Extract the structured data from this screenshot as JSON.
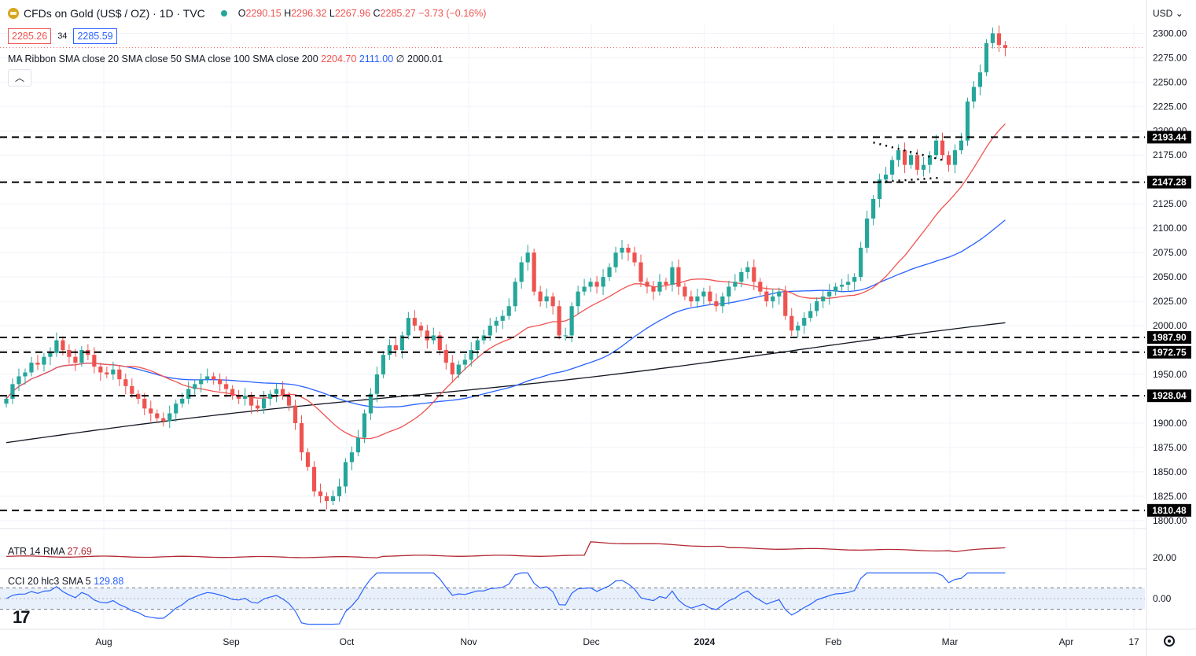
{
  "header": {
    "title": "CFDs on Gold (US$ / OZ) · 1D · TVC",
    "open_label": "O",
    "open": "2290.15",
    "high_label": "H",
    "high": "2296.32",
    "low_label": "L",
    "low": "2267.96",
    "close_label": "C",
    "close": "2285.27",
    "change": "−3.73 (−0.16%)",
    "sell_price": "2285.26",
    "spread": "34",
    "buy_price": "2285.59",
    "currency": "USD"
  },
  "ma_ribbon": {
    "label": "MA Ribbon SMA close 20 SMA close 50 SMA close 100 SMA close 200",
    "v20": "2204.70",
    "v50": "2111.00",
    "v100": "∅",
    "v200": "2000.01"
  },
  "atr": {
    "label": "ATR 14 RMA",
    "value": "27.69"
  },
  "cci": {
    "label": "CCI 20 hlc3 SMA 5",
    "value": "129.88"
  },
  "colors": {
    "up": "#26a69a",
    "down": "#ef5350",
    "sma20": "#ef5350",
    "sma50": "#2962ff",
    "sma200": "#131722",
    "atr": "#b22833",
    "cci": "#2962ff"
  },
  "chart_data": {
    "type": "candlestick",
    "yticks": [
      1800,
      1825,
      1850,
      1875,
      1900,
      1925,
      1950,
      1975,
      2000,
      2025,
      2050,
      2075,
      2100,
      2125,
      2150,
      2175,
      2200,
      2225,
      2250,
      2275,
      2300
    ],
    "ylim": [
      1795,
      2310
    ],
    "x_tick_labels": [
      "Aug",
      "Sep",
      "Oct",
      "Nov",
      "Dec",
      "2024",
      "Feb",
      "Mar",
      "Apr",
      "17"
    ],
    "levels": [
      2193.44,
      2147.28,
      1987.9,
      1972.75,
      1928.04,
      1810.48
    ],
    "level_labels": [
      "2193.44",
      "2147.28",
      "1987.90",
      "1972.75",
      "1928.04",
      "1810.48"
    ],
    "last_price": 2285.27,
    "closes": [
      1925,
      1940,
      1948,
      1952,
      1962,
      1960,
      1968,
      1972,
      1985,
      1975,
      1968,
      1962,
      1975,
      1970,
      1958,
      1952,
      1950,
      1955,
      1945,
      1938,
      1930,
      1925,
      1915,
      1910,
      1905,
      1902,
      1910,
      1920,
      1925,
      1935,
      1940,
      1945,
      1948,
      1945,
      1940,
      1935,
      1928,
      1925,
      1928,
      1918,
      1915,
      1925,
      1930,
      1935,
      1928,
      1918,
      1900,
      1870,
      1855,
      1830,
      1825,
      1820,
      1825,
      1835,
      1860,
      1870,
      1885,
      1910,
      1930,
      1950,
      1970,
      1980,
      1975,
      1990,
      2008,
      2000,
      1995,
      1985,
      1990,
      1975,
      1962,
      1950,
      1960,
      1965,
      1975,
      1985,
      1990,
      2000,
      2005,
      2010,
      2020,
      2045,
      2065,
      2075,
      2035,
      2025,
      2030,
      2020,
      1990,
      1990,
      2020,
      2035,
      2040,
      2045,
      2040,
      2050,
      2060,
      2075,
      2080,
      2075,
      2065,
      2045,
      2040,
      2035,
      2045,
      2042,
      2060,
      2040,
      2030,
      2025,
      2030,
      2035,
      2025,
      2020,
      2030,
      2040,
      2045,
      2055,
      2060,
      2045,
      2035,
      2025,
      2030,
      2035,
      2010,
      1995,
      2000,
      2008,
      2015,
      2025,
      2030,
      2035,
      2040,
      2042,
      2045,
      2050,
      2080,
      2110,
      2130,
      2150,
      2155,
      2170,
      2180,
      2165,
      2175,
      2160,
      2165,
      2175,
      2190,
      2175,
      2165,
      2180,
      2190,
      2230,
      2245,
      2260,
      2290,
      2300,
      2288,
      2285
    ],
    "atr_ylim": [
      15,
      40
    ],
    "atr_tick": "20.00",
    "cci_tick": "0.00",
    "cci_ylim": [
      -250,
      250
    ]
  }
}
